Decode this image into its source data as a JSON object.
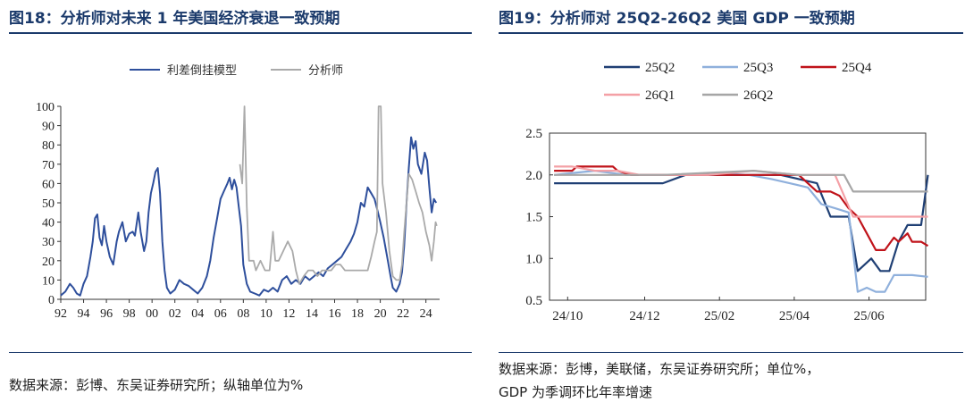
{
  "left": {
    "title": "图18：分析师对未来 1 年美国经济衰退一致预期",
    "note": "数据来源：彭博、东吴证券研究所；纵轴单位为%"
  },
  "right": {
    "title": "图19：分析师对 25Q2-26Q2 美国 GDP 一致预期",
    "note_line1": "数据来源：彭博，美联储，东吴证券研究所；单位%，",
    "note_line2": "GDP 为季调环比年率增速"
  },
  "chart_data": [
    {
      "type": "line",
      "title": "图18：分析师对未来 1 年美国经济衰退一致预期",
      "xlabel": "",
      "ylabel": "",
      "ylim": [
        0,
        100
      ],
      "yticks": [
        0,
        10,
        20,
        30,
        40,
        50,
        60,
        70,
        80,
        90,
        100
      ],
      "xticks": [
        "92",
        "94",
        "96",
        "98",
        "00",
        "02",
        "04",
        "06",
        "08",
        "10",
        "12",
        "14",
        "16",
        "18",
        "20",
        "22",
        "24"
      ],
      "xrange": [
        1992,
        2025.2
      ],
      "legend_position": "top-center",
      "series": [
        {
          "name": "利差倒挂模型",
          "color": "#2e4f9c",
          "points": [
            [
              1992.0,
              2
            ],
            [
              1992.4,
              4
            ],
            [
              1992.8,
              8
            ],
            [
              1993.1,
              6
            ],
            [
              1993.4,
              3
            ],
            [
              1993.7,
              2
            ],
            [
              1994.0,
              8
            ],
            [
              1994.3,
              12
            ],
            [
              1994.6,
              22
            ],
            [
              1994.8,
              30
            ],
            [
              1995.0,
              42
            ],
            [
              1995.2,
              44
            ],
            [
              1995.4,
              32
            ],
            [
              1995.6,
              28
            ],
            [
              1995.8,
              38
            ],
            [
              1996.0,
              30
            ],
            [
              1996.3,
              22
            ],
            [
              1996.6,
              18
            ],
            [
              1996.9,
              30
            ],
            [
              1997.1,
              35
            ],
            [
              1997.4,
              40
            ],
            [
              1997.7,
              30
            ],
            [
              1998.0,
              34
            ],
            [
              1998.3,
              35
            ],
            [
              1998.5,
              33
            ],
            [
              1998.8,
              45
            ],
            [
              1999.0,
              35
            ],
            [
              1999.3,
              25
            ],
            [
              1999.5,
              30
            ],
            [
              1999.7,
              45
            ],
            [
              1999.9,
              55
            ],
            [
              2000.1,
              60
            ],
            [
              2000.3,
              66
            ],
            [
              2000.5,
              68
            ],
            [
              2000.7,
              55
            ],
            [
              2000.9,
              30
            ],
            [
              2001.1,
              15
            ],
            [
              2001.3,
              6
            ],
            [
              2001.6,
              3
            ],
            [
              2002.0,
              5
            ],
            [
              2002.4,
              10
            ],
            [
              2002.8,
              8
            ],
            [
              2003.2,
              7
            ],
            [
              2003.6,
              5
            ],
            [
              2004.0,
              3
            ],
            [
              2004.4,
              6
            ],
            [
              2004.8,
              12
            ],
            [
              2005.1,
              20
            ],
            [
              2005.4,
              32
            ],
            [
              2005.7,
              42
            ],
            [
              2006.0,
              52
            ],
            [
              2006.3,
              56
            ],
            [
              2006.6,
              60
            ],
            [
              2006.8,
              63
            ],
            [
              2007.0,
              57
            ],
            [
              2007.2,
              62
            ],
            [
              2007.4,
              58
            ],
            [
              2007.6,
              48
            ],
            [
              2007.8,
              38
            ],
            [
              2008.0,
              18
            ],
            [
              2008.3,
              8
            ],
            [
              2008.6,
              4
            ],
            [
              2009.0,
              3
            ],
            [
              2009.4,
              2
            ],
            [
              2009.8,
              5
            ],
            [
              2010.2,
              4
            ],
            [
              2010.6,
              6
            ],
            [
              2011.0,
              4
            ],
            [
              2011.4,
              10
            ],
            [
              2011.8,
              12
            ],
            [
              2012.2,
              8
            ],
            [
              2012.6,
              10
            ],
            [
              2013.0,
              8
            ],
            [
              2013.4,
              12
            ],
            [
              2013.8,
              10
            ],
            [
              2014.2,
              12
            ],
            [
              2014.6,
              14
            ],
            [
              2015.0,
              12
            ],
            [
              2015.4,
              16
            ],
            [
              2015.8,
              18
            ],
            [
              2016.2,
              20
            ],
            [
              2016.6,
              22
            ],
            [
              2017.0,
              26
            ],
            [
              2017.4,
              30
            ],
            [
              2017.7,
              34
            ],
            [
              2018.0,
              40
            ],
            [
              2018.3,
              50
            ],
            [
              2018.6,
              48
            ],
            [
              2018.9,
              58
            ],
            [
              2019.2,
              55
            ],
            [
              2019.5,
              52
            ],
            [
              2019.8,
              45
            ],
            [
              2020.0,
              40
            ],
            [
              2020.3,
              32
            ],
            [
              2020.6,
              22
            ],
            [
              2020.9,
              12
            ],
            [
              2021.1,
              6
            ],
            [
              2021.4,
              4
            ],
            [
              2021.7,
              8
            ],
            [
              2021.9,
              14
            ],
            [
              2022.1,
              28
            ],
            [
              2022.3,
              50
            ],
            [
              2022.5,
              68
            ],
            [
              2022.7,
              84
            ],
            [
              2022.9,
              78
            ],
            [
              2023.1,
              82
            ],
            [
              2023.3,
              70
            ],
            [
              2023.6,
              65
            ],
            [
              2023.9,
              76
            ],
            [
              2024.1,
              72
            ],
            [
              2024.3,
              58
            ],
            [
              2024.5,
              45
            ],
            [
              2024.7,
              52
            ],
            [
              2024.9,
              50
            ]
          ]
        },
        {
          "name": "分析师",
          "color": "#aaaaaa",
          "points": [
            [
              2007.7,
              70
            ],
            [
              2007.9,
              60
            ],
            [
              2008.1,
              100
            ],
            [
              2008.3,
              48
            ],
            [
              2008.5,
              20
            ],
            [
              2008.9,
              20
            ],
            [
              2009.1,
              15
            ],
            [
              2009.5,
              20
            ],
            [
              2009.9,
              15
            ],
            [
              2010.3,
              15
            ],
            [
              2010.6,
              35
            ],
            [
              2010.8,
              20
            ],
            [
              2011.1,
              20
            ],
            [
              2011.5,
              25
            ],
            [
              2011.9,
              30
            ],
            [
              2012.3,
              25
            ],
            [
              2012.6,
              15
            ],
            [
              2012.9,
              8
            ],
            [
              2013.3,
              12
            ],
            [
              2013.7,
              15
            ],
            [
              2014.1,
              15
            ],
            [
              2014.5,
              12
            ],
            [
              2014.9,
              15
            ],
            [
              2015.3,
              15
            ],
            [
              2015.7,
              15
            ],
            [
              2016.1,
              18
            ],
            [
              2016.5,
              18
            ],
            [
              2016.9,
              15
            ],
            [
              2017.3,
              15
            ],
            [
              2017.7,
              15
            ],
            [
              2018.1,
              15
            ],
            [
              2018.5,
              15
            ],
            [
              2018.9,
              15
            ],
            [
              2019.2,
              22
            ],
            [
              2019.5,
              30
            ],
            [
              2019.7,
              35
            ],
            [
              2019.85,
              100
            ],
            [
              2020.05,
              100
            ],
            [
              2020.2,
              60
            ],
            [
              2020.5,
              45
            ],
            [
              2020.8,
              25
            ],
            [
              2021.1,
              12
            ],
            [
              2021.4,
              10
            ],
            [
              2021.7,
              10
            ],
            [
              2021.9,
              18
            ],
            [
              2022.1,
              35
            ],
            [
              2022.3,
              50
            ],
            [
              2022.5,
              65
            ],
            [
              2022.8,
              62
            ],
            [
              2023.1,
              56
            ],
            [
              2023.4,
              50
            ],
            [
              2023.7,
              45
            ],
            [
              2024.0,
              35
            ],
            [
              2024.3,
              28
            ],
            [
              2024.5,
              20
            ],
            [
              2024.7,
              30
            ],
            [
              2024.85,
              40
            ],
            [
              2024.95,
              38
            ]
          ]
        }
      ]
    },
    {
      "type": "line",
      "title": "图19：分析师对 25Q2-26Q2 美国 GDP 一致预期",
      "xlabel": "",
      "ylabel": "",
      "ylim": [
        0.5,
        2.5
      ],
      "yticks": [
        "0.5",
        "1.0",
        "1.5",
        "2.0",
        "2.5"
      ],
      "xticks": [
        "24/10",
        "24/12",
        "25/02",
        "25/04",
        "25/06"
      ],
      "xrange": [
        2024.75,
        2025.58
      ],
      "legend_position": "top",
      "series": [
        {
          "name": "25Q2",
          "color": "#1f3f74",
          "points": [
            [
              2024.76,
              1.9
            ],
            [
              2024.85,
              1.9
            ],
            [
              2024.92,
              1.9
            ],
            [
              2025.0,
              1.9
            ],
            [
              2025.05,
              2.0
            ],
            [
              2025.12,
              2.0
            ],
            [
              2025.19,
              2.0
            ],
            [
              2025.26,
              2.0
            ],
            [
              2025.3,
              1.95
            ],
            [
              2025.34,
              1.9
            ],
            [
              2025.37,
              1.5
            ],
            [
              2025.41,
              1.5
            ],
            [
              2025.43,
              0.85
            ],
            [
              2025.46,
              1.0
            ],
            [
              2025.48,
              0.85
            ],
            [
              2025.5,
              0.85
            ],
            [
              2025.52,
              1.2
            ],
            [
              2025.54,
              1.4
            ],
            [
              2025.57,
              1.4
            ],
            [
              2025.585,
              2.0
            ]
          ]
        },
        {
          "name": "25Q3",
          "color": "#8fb0dc",
          "points": [
            [
              2024.76,
              2.0
            ],
            [
              2024.85,
              2.05
            ],
            [
              2024.92,
              2.0
            ],
            [
              2025.0,
              2.0
            ],
            [
              2025.05,
              2.0
            ],
            [
              2025.12,
              2.02
            ],
            [
              2025.19,
              2.0
            ],
            [
              2025.24,
              1.95
            ],
            [
              2025.28,
              1.9
            ],
            [
              2025.32,
              1.85
            ],
            [
              2025.35,
              1.65
            ],
            [
              2025.38,
              1.6
            ],
            [
              2025.41,
              1.55
            ],
            [
              2025.43,
              0.6
            ],
            [
              2025.45,
              0.65
            ],
            [
              2025.47,
              0.6
            ],
            [
              2025.49,
              0.6
            ],
            [
              2025.51,
              0.8
            ],
            [
              2025.55,
              0.8
            ],
            [
              2025.585,
              0.78
            ]
          ]
        },
        {
          "name": "25Q4",
          "color": "#c0131a",
          "points": [
            [
              2024.76,
              2.05
            ],
            [
              2024.8,
              2.05
            ],
            [
              2024.81,
              2.1
            ],
            [
              2024.89,
              2.1
            ],
            [
              2024.9,
              2.05
            ],
            [
              2024.93,
              2.0
            ],
            [
              2025.0,
              2.0
            ],
            [
              2025.1,
              2.0
            ],
            [
              2025.2,
              2.0
            ],
            [
              2025.3,
              2.0
            ],
            [
              2025.34,
              1.8
            ],
            [
              2025.37,
              1.8
            ],
            [
              2025.39,
              1.75
            ],
            [
              2025.41,
              1.6
            ],
            [
              2025.43,
              1.5
            ],
            [
              2025.45,
              1.3
            ],
            [
              2025.47,
              1.1
            ],
            [
              2025.49,
              1.1
            ],
            [
              2025.51,
              1.25
            ],
            [
              2025.52,
              1.2
            ],
            [
              2025.54,
              1.3
            ],
            [
              2025.55,
              1.2
            ],
            [
              2025.57,
              1.2
            ],
            [
              2025.585,
              1.15
            ]
          ]
        },
        {
          "name": "26Q1",
          "color": "#f4a0a6",
          "points": [
            [
              2024.76,
              2.1
            ],
            [
              2024.8,
              2.1
            ],
            [
              2024.85,
              2.05
            ],
            [
              2024.9,
              2.05
            ],
            [
              2024.95,
              2.0
            ],
            [
              2025.1,
              2.0
            ],
            [
              2025.2,
              2.05
            ],
            [
              2025.3,
              2.0
            ],
            [
              2025.38,
              2.0
            ],
            [
              2025.42,
              1.5
            ],
            [
              2025.5,
              1.5
            ],
            [
              2025.585,
              1.5
            ]
          ]
        },
        {
          "name": "26Q2",
          "color": "#a6a6a6",
          "points": [
            [
              2024.76,
              2.0
            ],
            [
              2025.0,
              2.0
            ],
            [
              2025.2,
              2.05
            ],
            [
              2025.3,
              2.0
            ],
            [
              2025.4,
              2.0
            ],
            [
              2025.42,
              1.8
            ],
            [
              2025.45,
              1.8
            ],
            [
              2025.585,
              1.8
            ]
          ]
        }
      ]
    }
  ]
}
